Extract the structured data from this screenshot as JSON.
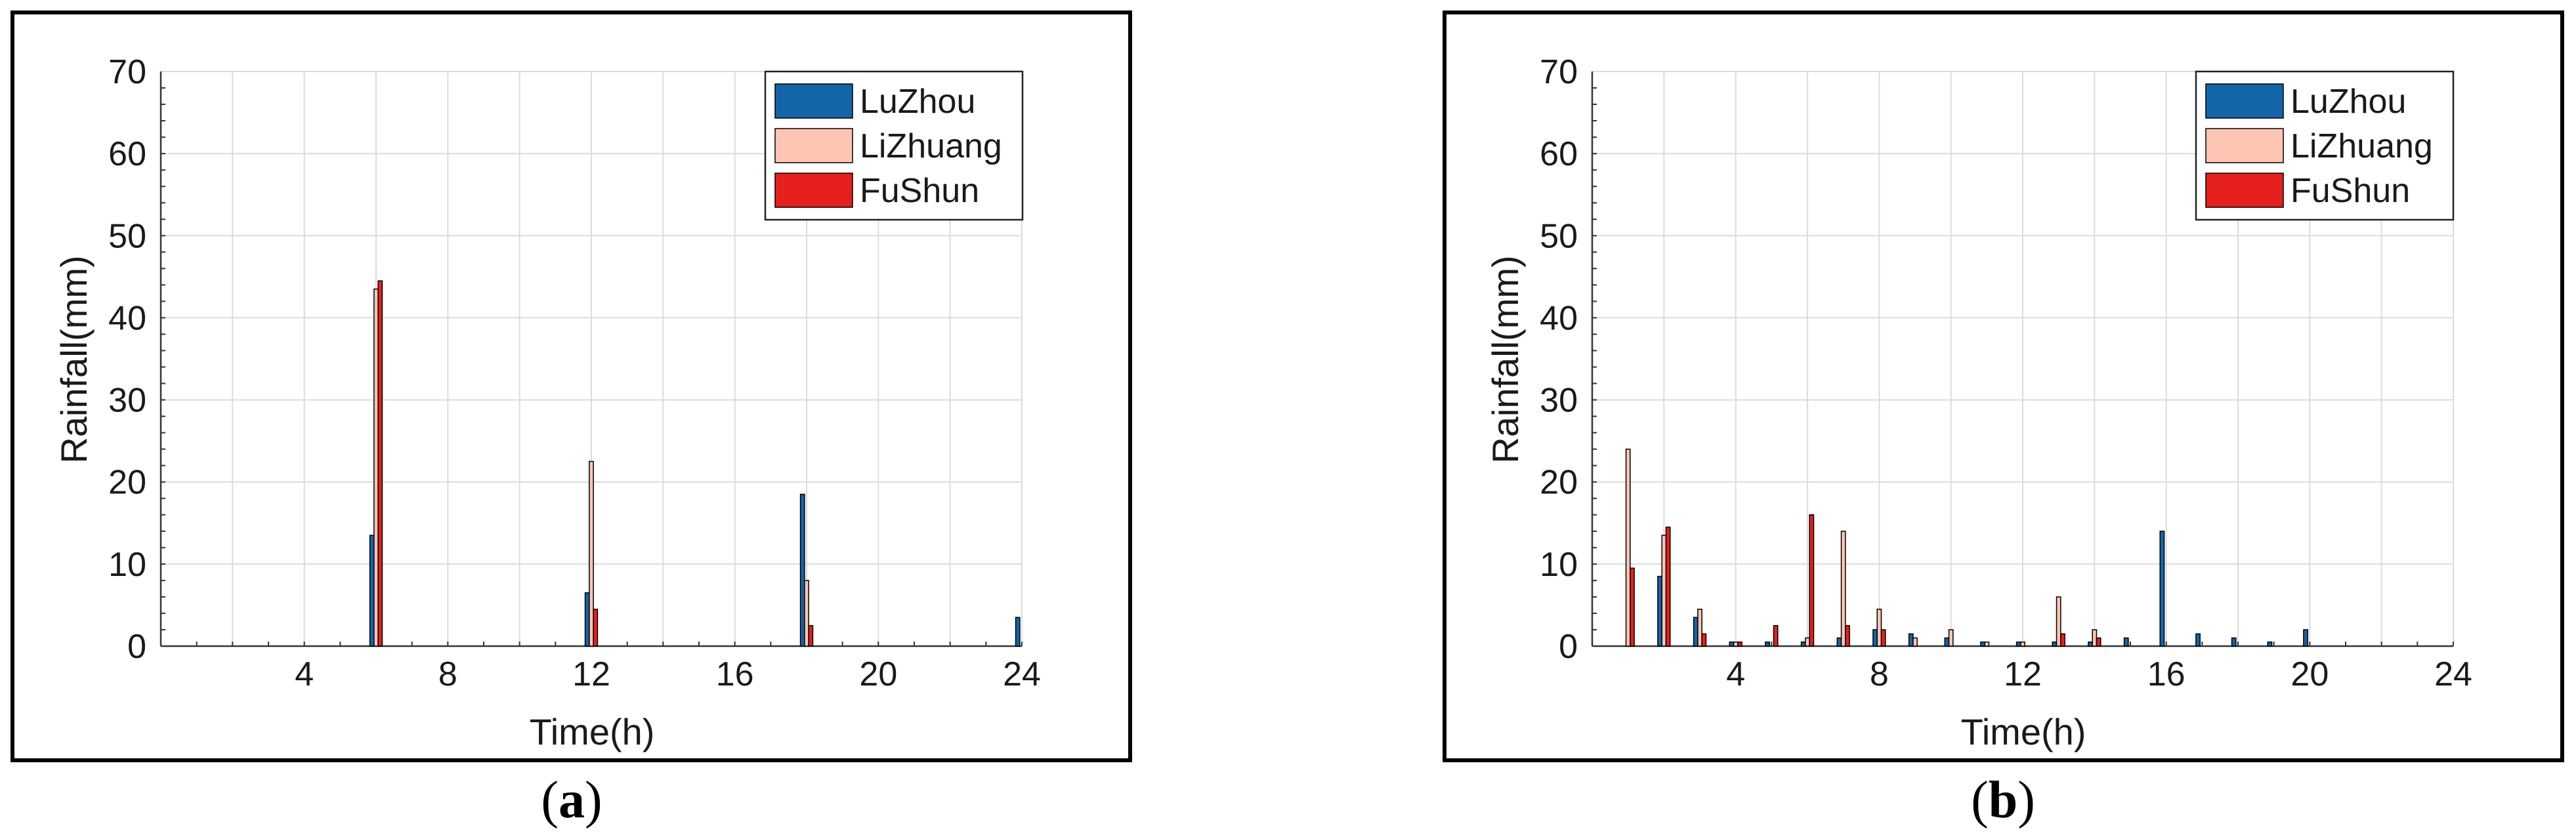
{
  "colors": {
    "LuZhou": "#1465a8",
    "LiZhuang": "#fcc5b4",
    "FuShun": "#e6201c"
  },
  "chart_data": [
    {
      "type": "bar",
      "panel_label": "(a)",
      "panel_letter": "a",
      "xlabel": "Time(h)",
      "ylabel": "Rainfall(mm)",
      "xlim": [
        0,
        24
      ],
      "ylim": [
        0,
        70
      ],
      "xticks": [
        "4",
        "8",
        "12",
        "16",
        "20",
        "24"
      ],
      "yticks": [
        "0",
        "10",
        "20",
        "30",
        "40",
        "50",
        "60",
        "70"
      ],
      "grid": true,
      "legend_position": "top-right",
      "x": [
        1,
        2,
        3,
        4,
        5,
        6,
        7,
        8,
        9,
        10,
        11,
        12,
        13,
        14,
        15,
        16,
        17,
        18,
        19,
        20,
        21,
        22,
        23,
        24
      ],
      "series": [
        {
          "name": "LuZhou",
          "color": "#1465a8",
          "values": [
            0,
            0,
            0,
            0,
            0,
            13.5,
            0,
            0,
            0,
            0,
            0,
            6.5,
            0,
            0,
            0,
            0,
            0,
            18.5,
            0,
            0,
            0,
            0,
            0,
            3.5
          ]
        },
        {
          "name": "LiZhuang",
          "color": "#fcc5b4",
          "values": [
            0,
            0,
            0,
            0,
            0,
            43.5,
            0,
            0,
            0,
            0,
            0,
            22.5,
            0,
            0,
            0,
            0,
            0,
            8,
            0,
            0,
            0,
            0,
            0,
            0
          ]
        },
        {
          "name": "FuShun",
          "color": "#e6201c",
          "values": [
            0,
            0,
            0,
            0,
            0,
            44.5,
            0,
            0,
            0,
            0,
            0,
            4.5,
            0,
            0,
            0,
            0,
            0,
            2.5,
            0,
            0,
            0,
            0,
            0,
            0
          ]
        }
      ]
    },
    {
      "type": "bar",
      "panel_label": "(b)",
      "panel_letter": "b",
      "xlabel": "Time(h)",
      "ylabel": "Rainfall(mm)",
      "xlim": [
        0,
        24
      ],
      "ylim": [
        0,
        70
      ],
      "xticks": [
        "4",
        "8",
        "12",
        "16",
        "20",
        "24"
      ],
      "yticks": [
        "0",
        "10",
        "20",
        "30",
        "40",
        "50",
        "60",
        "70"
      ],
      "grid": true,
      "legend_position": "top-right",
      "x": [
        1,
        2,
        3,
        4,
        5,
        6,
        7,
        8,
        9,
        10,
        11,
        12,
        13,
        14,
        15,
        16,
        17,
        18,
        19,
        20,
        21,
        22,
        23,
        24
      ],
      "series": [
        {
          "name": "LuZhou",
          "color": "#1465a8",
          "values": [
            0,
            8.5,
            3.5,
            0.5,
            0.5,
            0.5,
            1,
            2,
            1.5,
            1,
            0.5,
            0.5,
            0.5,
            0.5,
            1,
            14,
            1.5,
            1,
            0.5,
            2,
            0,
            0,
            0,
            0
          ]
        },
        {
          "name": "LiZhuang",
          "color": "#fcc5b4",
          "values": [
            24,
            13.5,
            4.5,
            0.5,
            0,
            1,
            14,
            4.5,
            1,
            2,
            0.5,
            0.5,
            6,
            2,
            0,
            0,
            0,
            0,
            0,
            0,
            0,
            0,
            0,
            0
          ]
        },
        {
          "name": "FuShun",
          "color": "#e6201c",
          "values": [
            9.5,
            14.5,
            1.5,
            0.5,
            2.5,
            16,
            2.5,
            2,
            0,
            0,
            0,
            0,
            1.5,
            1,
            0,
            0,
            0,
            0,
            0,
            0,
            0,
            0,
            0,
            0
          ]
        }
      ]
    }
  ]
}
